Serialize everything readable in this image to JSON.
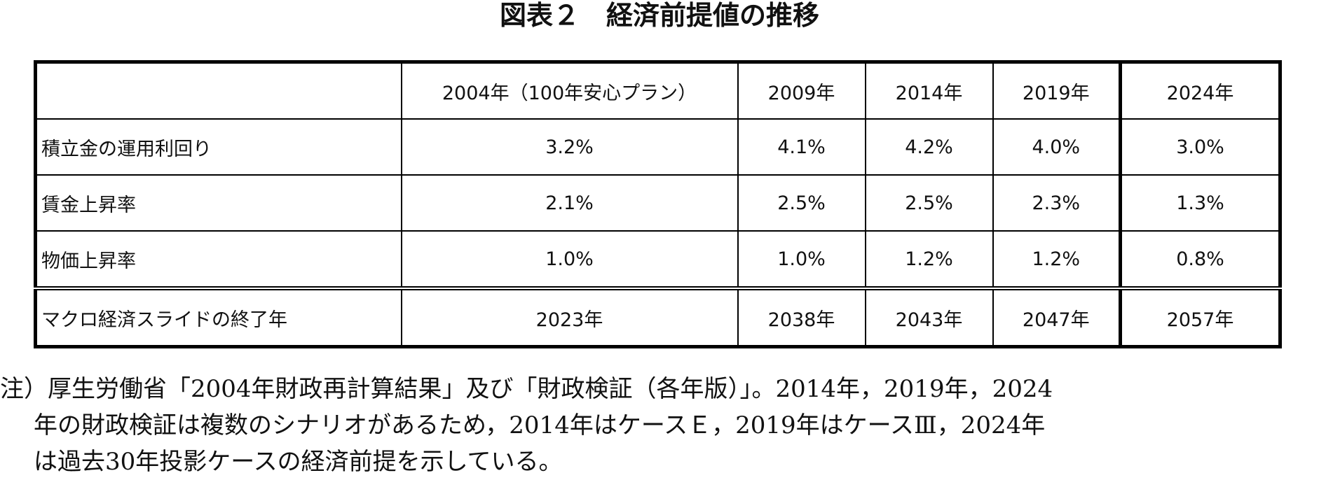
{
  "title": "図表２　経済前提値の推移",
  "table": {
    "header": [
      "",
      "2004年（100年安心プラン）",
      "2009年",
      "2014年",
      "2019年",
      "2024年"
    ],
    "rows": [
      [
        "積立金の運用利回り",
        "3.2%",
        "4.1%",
        "4.2%",
        "4.0%",
        "3.0%"
      ],
      [
        "賃金上昇率",
        "2.1%",
        "2.5%",
        "2.5%",
        "2.3%",
        "1.3%"
      ],
      [
        "物価上昇率",
        "1.0%",
        "1.0%",
        "1.2%",
        "1.2%",
        "0.8%"
      ],
      [
        "マクロ経済スライドの終了年",
        "2023年",
        "2038年",
        "2043年",
        "2047年",
        "2057年"
      ]
    ]
  },
  "note": {
    "lines": [
      "注）厚生労働省「2004年財政再計算結果」及び「財政検証（各年版）」。2014年，2019年，2024",
      "年の財政検証は複数のシナリオがあるため，2014年はケースＥ，2019年はケースⅢ，2024年",
      "は過去30年投影ケースの経済前提を示している。"
    ]
  }
}
